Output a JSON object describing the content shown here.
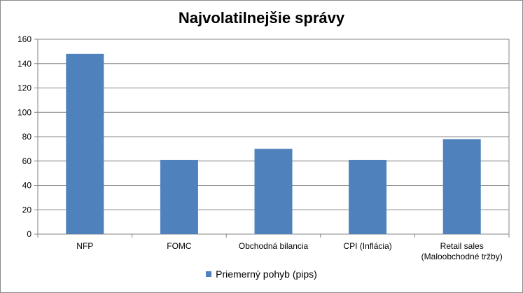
{
  "chart_data": {
    "type": "bar",
    "title": "Najvolatilnejšie správy",
    "categories": [
      [
        "NFP"
      ],
      [
        "FOMC"
      ],
      [
        "Obchodná bilancia"
      ],
      [
        "CPI (Inflácia)"
      ],
      [
        "Retail sales",
        "(Maloobchodné tržby)"
      ]
    ],
    "series": [
      {
        "name": "Priemerný pohyb (pips)",
        "values": [
          148,
          61,
          70,
          61,
          78
        ]
      }
    ],
    "yticks": [
      "0",
      "20",
      "40",
      "60",
      "80",
      "100",
      "120",
      "140",
      "160"
    ],
    "ylim": [
      0,
      160
    ],
    "grid": true,
    "legend_position": "bottom",
    "colors": {
      "bar": "#4f81bd",
      "grid": "#868686",
      "axis": "#868686"
    }
  }
}
